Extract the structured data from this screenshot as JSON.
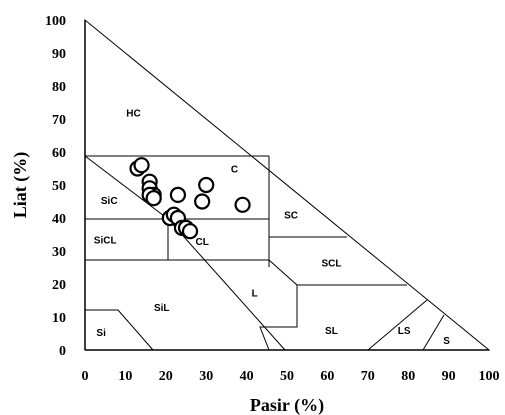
{
  "chart_data": {
    "type": "scatter",
    "xlabel": "Pasir (%)",
    "ylabel": "Liat (%)",
    "xlim": [
      0,
      100
    ],
    "ylim": [
      0,
      100
    ],
    "x_ticks": [
      "0",
      "10",
      "20",
      "30",
      "40",
      "50",
      "60",
      "70",
      "80",
      "90",
      "100"
    ],
    "y_ticks": [
      "0",
      "10",
      "20",
      "30",
      "40",
      "50",
      "60",
      "70",
      "80",
      "90",
      "100"
    ],
    "grid": false,
    "legend": "none",
    "region_labels": [
      {
        "name": "HC",
        "x": 12,
        "y": 72
      },
      {
        "name": "C",
        "x": 37,
        "y": 55
      },
      {
        "name": "SiC",
        "x": 6,
        "y": 45.5
      },
      {
        "name": "SC",
        "x": 51,
        "y": 41
      },
      {
        "name": "SiCL",
        "x": 5,
        "y": 33.5
      },
      {
        "name": "CL",
        "x": 29,
        "y": 33
      },
      {
        "name": "SCL",
        "x": 61,
        "y": 26.5
      },
      {
        "name": "L",
        "x": 42,
        "y": 17.5
      },
      {
        "name": "SiL",
        "x": 19,
        "y": 13
      },
      {
        "name": "Si",
        "x": 4,
        "y": 5.5
      },
      {
        "name": "SL",
        "x": 61,
        "y": 6
      },
      {
        "name": "LS",
        "x": 79,
        "y": 6
      },
      {
        "name": "S",
        "x": 89.5,
        "y": 3
      }
    ],
    "series": [
      {
        "x": [
          13,
          14,
          16,
          16,
          17,
          16,
          17,
          21,
          22,
          23,
          23,
          24,
          25,
          26,
          29,
          30,
          39
        ],
        "y": [
          55,
          56,
          51,
          49,
          47,
          47,
          46,
          40,
          41,
          47,
          40,
          37,
          37,
          36,
          45,
          50,
          44
        ]
      }
    ]
  }
}
